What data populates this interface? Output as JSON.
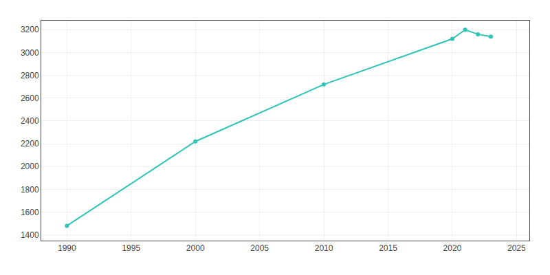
{
  "chart_data": {
    "type": "line",
    "x": [
      1990,
      2000,
      2010,
      2020,
      2021,
      2022,
      2023
    ],
    "values": [
      1480,
      2220,
      2720,
      3120,
      3200,
      3160,
      3140
    ],
    "color": "#2ec4b6",
    "marker": "circle",
    "xlim": [
      1988,
      2026
    ],
    "ylim": [
      1350,
      3280
    ],
    "xticks": [
      1990,
      1995,
      2000,
      2005,
      2010,
      2015,
      2020,
      2025
    ],
    "yticks": [
      1400,
      1600,
      1800,
      2000,
      2200,
      2400,
      2600,
      2800,
      3000,
      3200
    ],
    "grid": true
  }
}
